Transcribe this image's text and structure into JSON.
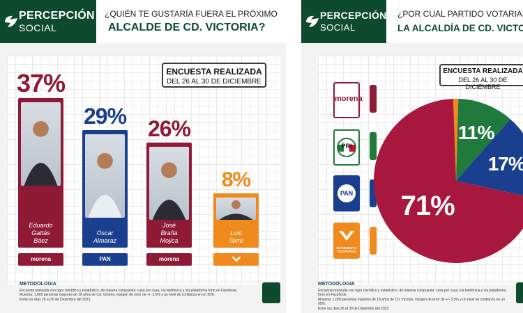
{
  "brand": {
    "name_top": "PERCEPCIÓN",
    "name_bottom": "SOCIAL",
    "color": "#0e4a2e"
  },
  "left_panel": {
    "question_line1": "¿QUIÉN TE GUSTARÍA FUERA EL PRÓXIMO",
    "question_line2": "ALCALDE DE CD. VICTORIA?",
    "badge_line1": "ENCUESTA REALIZADA",
    "badge_line2": "DEL 26 AL 30 DE DICIEMBRE",
    "methodology_title": "METODOLOGIA",
    "methodology_lines": [
      "Encuesta realizada con rigor científico y estadístico, de manera compuesta: casa por casa, vía telefónica y vía plataforma form en Facebook.",
      "Muestra: 1,000 personas mayores de 18 años de Cd. Victoria, margen de error de +/- 3.5% y un nivel de confianza en un 95%.",
      "Entre los días 26 al 30 de Diciembre del 2023."
    ]
  },
  "right_panel": {
    "question_line1": "¿POR CUAL PARTIDO VOTARIAS PA",
    "question_line2": "LA ALCALDÍA DE CD. VICTORI",
    "badge_line1": "ENCUESTA REALIZADA",
    "badge_line2": "DEL 26 AL 30 DE DICIEMBRE",
    "methodology_title": "METODOLOGIA",
    "methodology_lines": [
      "Encuesta realizada con rigor científico y estadístico, de manera compuesta: casa por casa, vía telefónica y vía plataforma form en Facebook.",
      "Muestra: 1,000 personas mayores de 18 años de Cd. Victoria, margen de error de +/- 3.5% y un nivel de confianza en un 95%.",
      "Entre los días 26 al 30 de Diciembre del 2023."
    ],
    "party_labels": [
      "morena",
      "PRI",
      "PAN",
      "MOVIMIENTO CIUDADANO"
    ]
  },
  "chart_data": [
    {
      "type": "bar",
      "title": "ALCALDE DE CD. VICTORIA?",
      "categories": [
        "Eduardo Gattás Báez",
        "Oscar Almaraz",
        "José Braña Mojica",
        "Luis Torre"
      ],
      "name_lines": [
        [
          "Eduardo",
          "Gattás",
          "Báez"
        ],
        [
          "Oscar",
          "Almaraz"
        ],
        [
          "José",
          "Braña",
          "Mojica"
        ],
        [
          "Luis",
          "Torre"
        ]
      ],
      "values": [
        37,
        29,
        26,
        8
      ],
      "value_labels": [
        "37%",
        "29%",
        "26%",
        "8%"
      ],
      "party_chips": [
        "morena",
        "PAN",
        "morena",
        "MC"
      ],
      "colors": [
        "#8e1a36",
        "#1b3f8f",
        "#8e1a36",
        "#f08a1c"
      ],
      "ylim": [
        0,
        37
      ]
    },
    {
      "type": "pie",
      "title": "LA ALCALDÍA DE CD. VICTORI",
      "labels": [
        "morena",
        "PAN",
        "PRI",
        "MC"
      ],
      "values": [
        71,
        17,
        11,
        1
      ],
      "value_labels": [
        "71%",
        "17%",
        "11%",
        ""
      ],
      "colors": [
        "#a8173d",
        "#1b3f8f",
        "#1f7a3c",
        "#f08a1c"
      ]
    }
  ]
}
